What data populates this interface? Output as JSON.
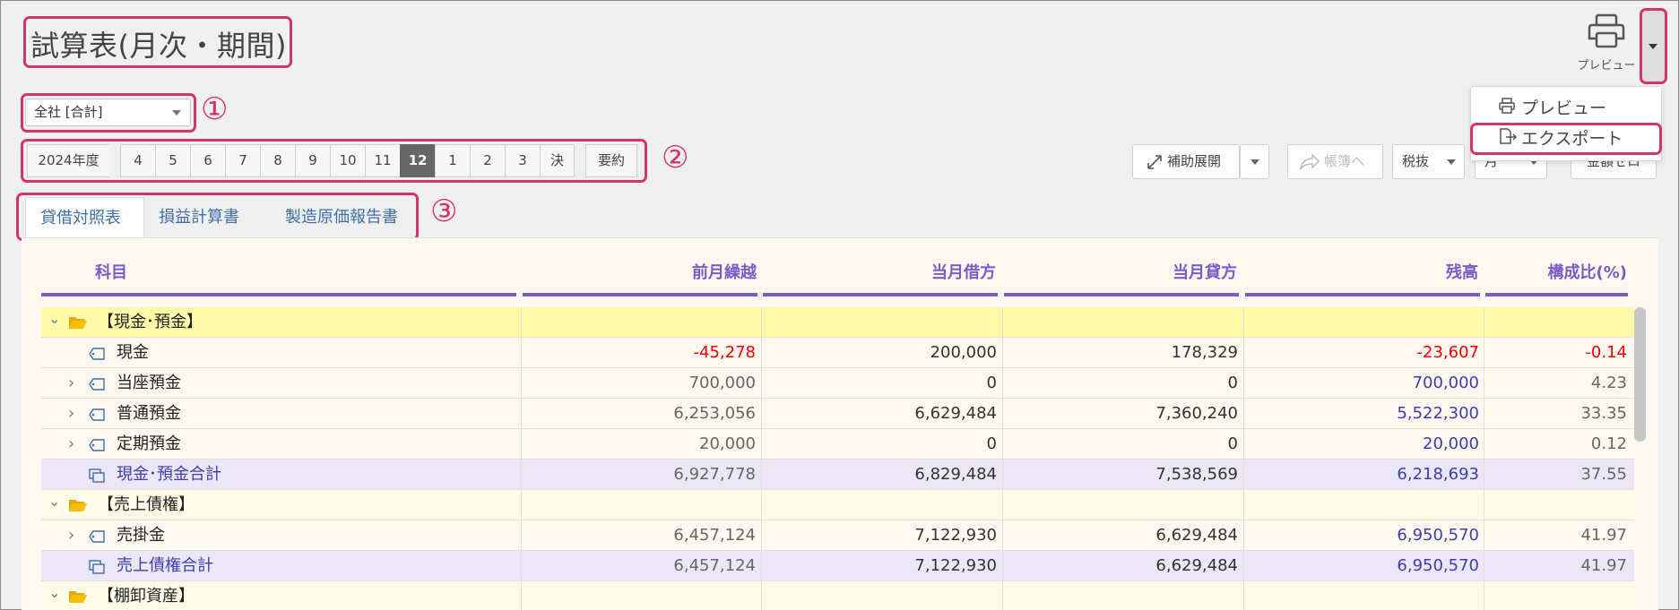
{
  "page": {
    "title": "試算表(月次・期間)"
  },
  "company": {
    "selected": "全社 [合計]"
  },
  "annotations": {
    "marker1": "①",
    "marker2": "②",
    "marker3": "③"
  },
  "period": {
    "fiscal_year": "2024年度",
    "months": [
      "4",
      "5",
      "6",
      "7",
      "8",
      "9",
      "10",
      "11",
      "12",
      "1",
      "2",
      "3",
      "決"
    ],
    "active_month": "12",
    "summary": "要約"
  },
  "toolbar": {
    "sub_expand": "補助展開",
    "to_ledger": "帳簿へ",
    "tax_mode": "税抜",
    "unit_select": "月",
    "amount_toggle": "金額ゼロ"
  },
  "print": {
    "label": "プレビュー",
    "menu": [
      {
        "label": "プレビュー",
        "icon": "printer-icon"
      },
      {
        "label": "エクスポート",
        "icon": "export-icon"
      }
    ]
  },
  "tabs": [
    {
      "label": "貸借対照表",
      "active": true
    },
    {
      "label": "損益計算書",
      "active": false
    },
    {
      "label": "製造原価報告書",
      "active": false
    }
  ],
  "table": {
    "columns": [
      "科目",
      "前月繰越",
      "当月借方",
      "当月貸方",
      "残高",
      "構成比(%)"
    ],
    "rows": [
      {
        "type": "group",
        "label": "【現金･預金】"
      },
      {
        "type": "item",
        "expand": false,
        "label": "現金",
        "values": [
          "-45,278",
          "200,000",
          "178,329",
          "-23,607",
          "-0.14"
        ],
        "negative": true
      },
      {
        "type": "item",
        "expand": true,
        "label": "当座預金",
        "values": [
          "700,000",
          "0",
          "0",
          "700,000",
          "4.23"
        ]
      },
      {
        "type": "item",
        "expand": true,
        "label": "普通預金",
        "values": [
          "6,253,056",
          "6,629,484",
          "7,360,240",
          "5,522,300",
          "33.35"
        ]
      },
      {
        "type": "item",
        "expand": true,
        "label": "定期預金",
        "values": [
          "20,000",
          "0",
          "0",
          "20,000",
          "0.12"
        ]
      },
      {
        "type": "total",
        "label": "現金･預金合計",
        "values": [
          "6,927,778",
          "6,829,484",
          "7,538,569",
          "6,218,693",
          "37.55"
        ]
      },
      {
        "type": "group",
        "label": "【売上債権】"
      },
      {
        "type": "item",
        "expand": true,
        "label": "売掛金",
        "values": [
          "6,457,124",
          "7,122,930",
          "6,629,484",
          "6,950,570",
          "41.97"
        ]
      },
      {
        "type": "total",
        "label": "売上債権合計",
        "values": [
          "6,457,124",
          "7,122,930",
          "6,629,484",
          "6,950,570",
          "41.97"
        ]
      },
      {
        "type": "group",
        "label": "【棚卸資産】"
      }
    ]
  },
  "colors": {
    "highlight": "#d6336c",
    "accent": "#7c5bc7",
    "negative": "#e00000",
    "balance": "#3d3db0"
  }
}
